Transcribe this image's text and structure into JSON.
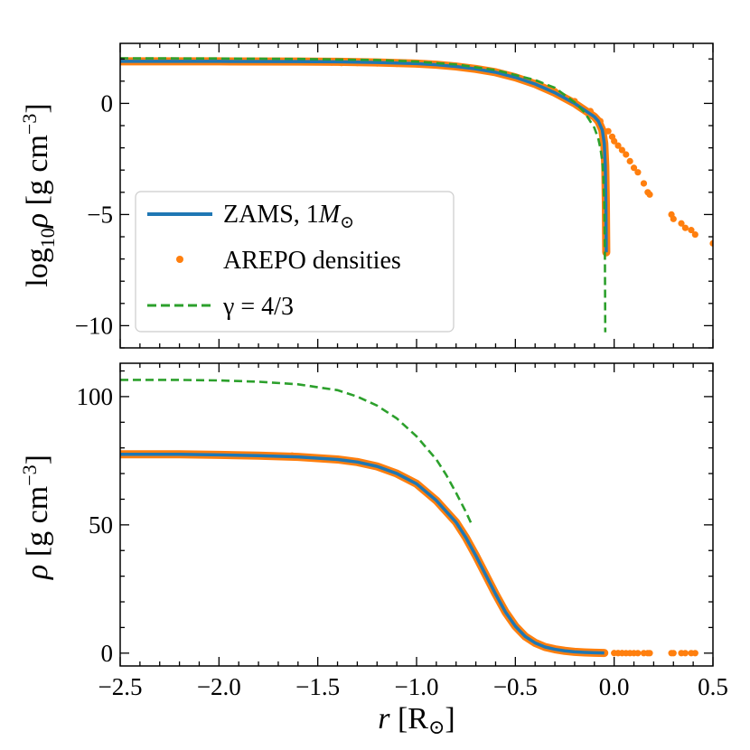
{
  "chart_data": [
    {
      "type": "line",
      "panel": "top",
      "ylabel_parts": {
        "pre": "log",
        "sub": "10",
        "rho": "ρ",
        "rest": " [g cm",
        "sup": "−3",
        "close": "]"
      },
      "xlim": [
        -2.5,
        0.5
      ],
      "ylim": [
        -11,
        2.7
      ],
      "xticks": [
        -2.5,
        -2.0,
        -1.5,
        -1.0,
        -0.5,
        0.0,
        0.5
      ],
      "yticks": [
        -10,
        -5,
        0
      ],
      "ytick_labels": [
        "−10",
        "−5",
        "0"
      ],
      "grid": false,
      "legend": {
        "placement": "lower-left",
        "entries": [
          {
            "label_main": "ZAMS, 1",
            "label_M": "M",
            "label_sub": "⊙",
            "style": "line",
            "color": "#1f77b4"
          },
          {
            "label_main": "AREPO densities",
            "style": "marker",
            "color": "#ff7f0e"
          },
          {
            "label_main": "γ = 4/3",
            "style": "dashed",
            "color": "#2ca02c"
          }
        ]
      },
      "series": [
        {
          "name": "ZAMS, 1M⊙",
          "style": "line",
          "color": "#1f77b4",
          "x": [
            -2.5,
            -2.0,
            -1.6,
            -1.4,
            -1.2,
            -1.0,
            -0.9,
            -0.8,
            -0.7,
            -0.6,
            -0.5,
            -0.4,
            -0.3,
            -0.2,
            -0.15,
            -0.1,
            -0.08,
            -0.06,
            -0.05,
            -0.045,
            -0.042,
            -0.04
          ],
          "y": [
            1.89,
            1.89,
            1.88,
            1.87,
            1.84,
            1.79,
            1.74,
            1.66,
            1.55,
            1.4,
            1.17,
            0.87,
            0.48,
            0.0,
            -0.3,
            -0.6,
            -0.8,
            -1.2,
            -1.8,
            -2.8,
            -4.5,
            -6.7
          ]
        },
        {
          "name": "AREPO densities",
          "style": "scatter",
          "color": "#ff7f0e",
          "x": [
            -1.92,
            -1.63,
            -1.58,
            -1.5,
            -1.43,
            -1.38,
            -1.3,
            -1.2,
            -1.1,
            -1.0,
            -0.9,
            -0.8,
            -0.7,
            -0.6,
            -0.5,
            -0.4,
            -0.3,
            -0.2,
            -0.12,
            -0.07,
            -0.03,
            -0.01,
            0.0,
            0.02,
            0.04,
            0.06,
            0.08,
            0.1,
            0.12,
            0.15,
            0.17,
            0.18,
            0.29,
            0.3,
            0.34,
            0.36,
            0.39,
            0.41,
            0.5
          ],
          "y": [
            1.85,
            1.86,
            1.85,
            1.86,
            1.84,
            1.82,
            1.82,
            1.8,
            1.78,
            1.76,
            1.72,
            1.65,
            1.55,
            1.4,
            1.2,
            0.92,
            0.55,
            0.1,
            -0.35,
            -0.8,
            -1.25,
            -1.5,
            -1.7,
            -1.9,
            -2.1,
            -2.3,
            -2.6,
            -2.9,
            -3.1,
            -3.6,
            -4.0,
            -4.1,
            -5.0,
            -5.2,
            -5.4,
            -5.6,
            -5.7,
            -5.9,
            -6.3
          ]
        },
        {
          "name": "γ = 4/3",
          "style": "dashed",
          "color": "#2ca02c",
          "x": [
            -2.5,
            -2.0,
            -1.6,
            -1.2,
            -1.0,
            -0.8,
            -0.6,
            -0.4,
            -0.3,
            -0.2,
            -0.15,
            -0.1,
            -0.08,
            -0.07,
            -0.06,
            -0.055,
            -0.05,
            -0.047,
            -0.045
          ],
          "y": [
            2.03,
            2.02,
            2.0,
            1.95,
            1.88,
            1.75,
            1.5,
            1.05,
            0.7,
            0.05,
            -0.4,
            -1.1,
            -1.6,
            -2.0,
            -2.6,
            -3.2,
            -4.5,
            -6.5,
            -10.3
          ]
        }
      ]
    },
    {
      "type": "line",
      "panel": "bottom",
      "ylabel_parts": {
        "rho": "ρ",
        "rest": " [g cm",
        "sup": "−3",
        "close": "]"
      },
      "xlabel_parts": {
        "r": "r",
        "rest": " [R",
        "sub": "⊙",
        "close": "]"
      },
      "xlim": [
        -2.5,
        0.5
      ],
      "ylim": [
        -5,
        113
      ],
      "xticks": [
        -2.5,
        -2.0,
        -1.5,
        -1.0,
        -0.5,
        0.0,
        0.5
      ],
      "xtick_labels": [
        "−2.5",
        "−2.0",
        "−1.5",
        "−1.0",
        "−0.5",
        "0.0",
        "0.5"
      ],
      "yticks": [
        0,
        50,
        100
      ],
      "ytick_labels": [
        "0",
        "50",
        "100"
      ],
      "grid": false,
      "series": [
        {
          "name": "ZAMS, 1M⊙",
          "style": "line",
          "color": "#1f77b4",
          "x": [
            -2.5,
            -2.2,
            -2.0,
            -1.8,
            -1.6,
            -1.4,
            -1.3,
            -1.2,
            -1.1,
            -1.0,
            -0.9,
            -0.8,
            -0.75,
            -0.7,
            -0.65,
            -0.6,
            -0.55,
            -0.5,
            -0.45,
            -0.4,
            -0.35,
            -0.3,
            -0.25,
            -0.2,
            -0.15,
            -0.1,
            -0.05
          ],
          "y": [
            77.5,
            77.5,
            77.3,
            77.0,
            76.5,
            75.5,
            74.5,
            72.8,
            70.0,
            66.0,
            59.5,
            51.0,
            45.0,
            38.0,
            30.5,
            23.0,
            16.0,
            10.5,
            6.5,
            4.0,
            2.4,
            1.5,
            0.9,
            0.5,
            0.3,
            0.15,
            0.05
          ]
        },
        {
          "name": "AREPO densities",
          "style": "scatter",
          "color": "#ff7f0e",
          "x": [
            -1.92,
            -1.63,
            -1.58,
            -1.5,
            -1.43,
            -1.38,
            -1.3,
            -1.2,
            -1.1,
            -1.0,
            -0.9,
            -0.8,
            -0.7,
            -0.6,
            -0.5,
            -0.4,
            -0.3,
            -0.2,
            -0.1,
            0.0,
            0.02,
            0.04,
            0.06,
            0.08,
            0.1,
            0.12,
            0.15,
            0.17,
            0.18,
            0.29,
            0.3,
            0.34,
            0.36,
            0.39,
            0.41
          ],
          "y": [
            77.3,
            77.0,
            76.5,
            76.0,
            75.5,
            75.3,
            74.8,
            72.5,
            70.0,
            66.0,
            59.5,
            51.0,
            38.0,
            23.0,
            10.5,
            4.0,
            1.5,
            0.5,
            0.15,
            0.02,
            0.01,
            0.01,
            0.0,
            0.0,
            0.0,
            0.0,
            0.0,
            0.0,
            0.0,
            0.0,
            0.0,
            0.0,
            0.0,
            0.0,
            0.0
          ]
        },
        {
          "name": "γ = 4/3",
          "style": "dashed",
          "color": "#2ca02c",
          "x": [
            -2.5,
            -2.2,
            -2.0,
            -1.8,
            -1.6,
            -1.4,
            -1.3,
            -1.2,
            -1.1,
            -1.0,
            -0.9,
            -0.85,
            -0.8,
            -0.75,
            -0.72
          ],
          "y": [
            106.5,
            106.5,
            106.3,
            105.8,
            104.8,
            102.5,
            100.0,
            96.5,
            91.5,
            84.5,
            75.5,
            69.5,
            62.5,
            55.0,
            50.0
          ]
        }
      ]
    }
  ]
}
